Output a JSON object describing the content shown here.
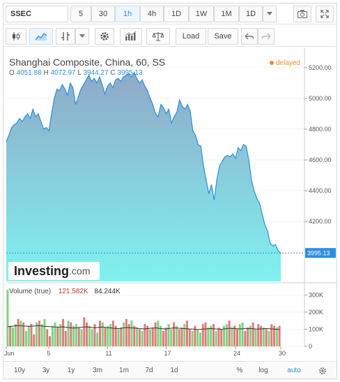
{
  "toolbar": {
    "symbol": "SSEC",
    "intervals": [
      "5",
      "30",
      "1h",
      "4h",
      "1D",
      "1W",
      "1M",
      "1D"
    ],
    "active_interval": "1h",
    "load_label": "Load",
    "save_label": "Save"
  },
  "legend": {
    "title": "Shanghai Composite, China, 60, SS",
    "o_label": "O",
    "o_value": "4051.88",
    "h_label": "H",
    "h_value": "4072.97",
    "l_label": "L",
    "l_value": "3944.27",
    "c_label": "C",
    "c_value": "3995.13",
    "delayed": "delayed"
  },
  "price_marker": "3995.13",
  "volume": {
    "label": "Volume (true)",
    "value1": "121.582K",
    "value2": "84.244K"
  },
  "logo": {
    "main": "Investing",
    "suffix": ".com"
  },
  "bottom": {
    "ranges": [
      "10y",
      "3y",
      "1y",
      "3m",
      "1m",
      "7d",
      "1d"
    ],
    "options": [
      "%",
      "log",
      "auto"
    ],
    "active_option": "auto"
  },
  "colors": {
    "accent": "#2a8ee0",
    "area_top": "#8fa9c8",
    "area_bottom": "#7ff2f0",
    "up_bar": "#7fd37f",
    "down_bar": "#e07b7b",
    "delayed": "#f28c28"
  },
  "chart_data": [
    {
      "type": "area",
      "y_ticks": [
        4200,
        4400,
        4600,
        4800,
        5000,
        5200
      ],
      "ylim": [
        3810,
        5290
      ],
      "x_ticks": [
        "Jun",
        "5",
        "11",
        "17",
        "24",
        "30"
      ],
      "values": [
        4720,
        4760,
        4810,
        4830,
        4840,
        4870,
        4850,
        4880,
        4900,
        4870,
        4930,
        4880,
        4900,
        4850,
        4800,
        4810,
        4790,
        4900,
        5000,
        5060,
        5050,
        5090,
        5060,
        5020,
        5100,
        5070,
        4960,
        5010,
        5060,
        5090,
        5120,
        5150,
        5110,
        5130,
        5100,
        5140,
        5090,
        5030,
        5080,
        5100,
        5070,
        5120,
        5130,
        5110,
        5140,
        5150,
        5160,
        5140,
        5170,
        5130,
        5100,
        5120,
        5080,
        5050,
        5000,
        4960,
        4900,
        4880,
        4960,
        4940,
        4900,
        4930,
        4840,
        4880,
        4910,
        4990,
        4950,
        4930,
        4960,
        4920,
        4790,
        4760,
        4700,
        4690,
        4560,
        4470,
        4380,
        4440,
        4340,
        4470,
        4560,
        4590,
        4620,
        4630,
        4620,
        4640,
        4610,
        4680,
        4660,
        4700,
        4690,
        4600,
        4470,
        4400,
        4350,
        4320,
        4250,
        4180,
        4140,
        4060,
        4040,
        4050,
        4010,
        3995.13
      ],
      "last_value": 3995.13
    },
    {
      "type": "bar",
      "ylim": [
        0,
        330
      ],
      "y_ticks": [
        0,
        100,
        200,
        300
      ],
      "y_tick_labels": [
        "0",
        "100K",
        "200K",
        "300K"
      ],
      "values": [
        330,
        120,
        110,
        130,
        160,
        150,
        140,
        90,
        120,
        130,
        70,
        140,
        150,
        130,
        160,
        100,
        60,
        120,
        140,
        110,
        130,
        160,
        90,
        150,
        140,
        120,
        130,
        110,
        100,
        170,
        140,
        120,
        100,
        130,
        80,
        150,
        140,
        110,
        120,
        130,
        150,
        120,
        100,
        110,
        140,
        160,
        130,
        150,
        120,
        110,
        100,
        90,
        130,
        120,
        100,
        110,
        140,
        150,
        120,
        90,
        110,
        130,
        100,
        140,
        120,
        100,
        110,
        130,
        150,
        100,
        90,
        120,
        100,
        80,
        130,
        140,
        110,
        120,
        130,
        90,
        110,
        100,
        120,
        130,
        150,
        110,
        120,
        100,
        130,
        140,
        90,
        110,
        120,
        140,
        100,
        130,
        120,
        110,
        100,
        90,
        130,
        120,
        110,
        120
      ],
      "up": [
        true,
        false,
        true,
        true,
        false,
        true,
        false,
        true,
        true,
        false,
        false,
        true,
        false,
        true,
        true,
        false,
        false,
        true,
        true,
        false,
        true,
        false,
        false,
        true,
        false,
        true,
        true,
        false,
        true,
        false,
        false,
        true,
        true,
        false,
        true,
        false,
        true,
        false,
        true,
        true,
        false,
        false,
        true,
        false,
        true,
        false,
        false,
        true,
        false,
        true,
        false,
        true,
        false,
        false,
        true,
        false,
        false,
        true,
        true,
        false,
        false,
        true,
        true,
        false,
        true,
        false,
        false,
        true,
        false,
        false,
        true,
        false,
        true,
        true,
        false,
        false,
        true,
        true,
        false,
        true,
        false,
        false,
        true,
        true,
        false,
        true,
        false,
        false,
        true,
        true,
        false,
        false,
        true,
        false,
        true,
        false,
        false,
        true,
        false,
        true,
        false,
        false,
        true,
        false
      ],
      "ma": [
        115,
        116,
        118,
        120,
        121,
        120,
        119,
        118,
        117,
        118,
        119,
        120,
        121,
        119,
        117,
        116,
        115,
        114,
        113,
        112,
        113,
        114,
        112,
        110,
        108,
        107,
        108,
        110,
        112,
        113,
        114,
        112,
        110,
        109,
        110,
        112,
        113,
        111,
        109,
        108,
        106,
        105,
        104,
        106,
        108,
        110,
        109,
        108,
        107,
        106,
        104,
        103,
        102,
        104,
        106,
        107,
        108,
        106,
        104,
        103,
        102,
        104,
        106,
        108,
        107,
        106,
        105,
        104,
        103,
        102,
        101,
        100,
        99,
        100,
        101,
        102,
        103,
        104,
        103,
        102,
        101,
        100,
        102,
        104,
        106,
        105,
        104,
        103,
        102,
        103,
        104,
        105,
        104,
        103,
        102,
        101,
        102,
        103,
        104,
        103,
        102,
        101,
        100,
        99
      ]
    }
  ]
}
